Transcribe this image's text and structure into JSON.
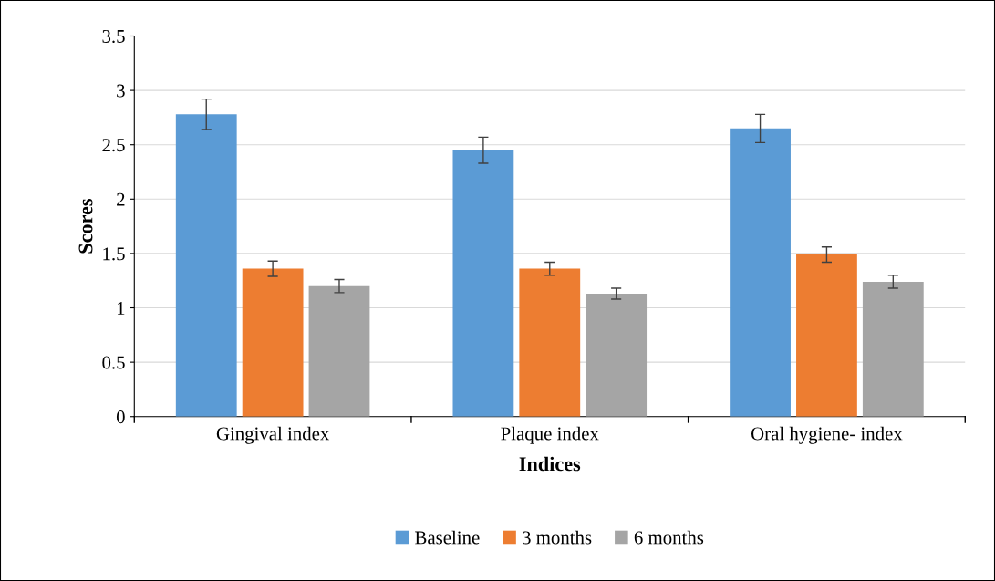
{
  "chart_data": {
    "type": "bar",
    "xlabel": "Indices",
    "ylabel": "Scores",
    "categories": [
      "Gingival index",
      "Plaque index",
      "Oral hygiene- index"
    ],
    "series": [
      {
        "name": "Baseline",
        "color": "#5b9bd5",
        "values": [
          2.78,
          2.45,
          2.65
        ],
        "errors": [
          0.14,
          0.12,
          0.13
        ]
      },
      {
        "name": "3 months",
        "color": "#ed7d31",
        "values": [
          1.36,
          1.36,
          1.49
        ],
        "errors": [
          0.07,
          0.06,
          0.07
        ]
      },
      {
        "name": "6 months",
        "color": "#a5a5a5",
        "values": [
          1.2,
          1.13,
          1.24
        ],
        "errors": [
          0.06,
          0.05,
          0.06
        ]
      }
    ],
    "ylim": [
      0,
      3.5
    ],
    "yticks": [
      0,
      0.5,
      1,
      1.5,
      2,
      2.5,
      3,
      3.5
    ],
    "grid": "y",
    "legend": "bottom"
  }
}
